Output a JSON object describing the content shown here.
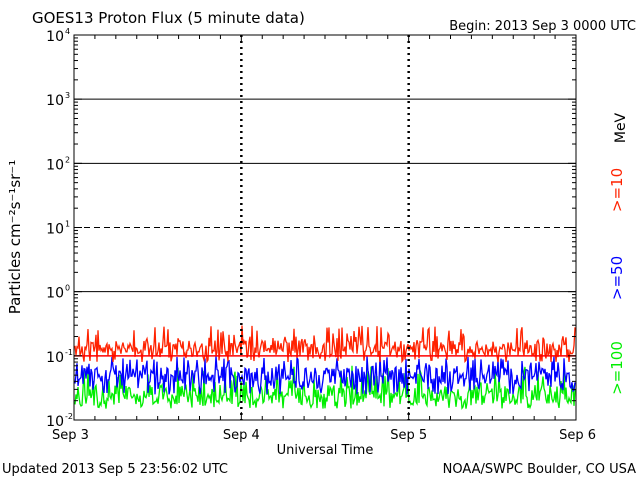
{
  "header": {
    "title": "GOES13 Proton Flux (5 minute data)",
    "begin": "Begin: 2013 Sep 3 0000 UTC"
  },
  "footer": {
    "updated": "Updated 2013 Sep  5 23:56:02 UTC",
    "source": "NOAA/SWPC Boulder, CO USA"
  },
  "chart_data": {
    "type": "line",
    "title": "GOES13 Proton Flux (5 minute data)",
    "xlabel": "Universal Time",
    "ylabel": "Particles cm⁻²s⁻¹sr⁻¹",
    "y_scale": "log",
    "ylim": [
      0.01,
      10000
    ],
    "y_ticks": [
      {
        "value": 0.01,
        "base": "10",
        "exp": "-2"
      },
      {
        "value": 0.1,
        "base": "10",
        "exp": "-1"
      },
      {
        "value": 1,
        "base": "10",
        "exp": "0"
      },
      {
        "value": 10,
        "base": "10",
        "exp": "1"
      },
      {
        "value": 100,
        "base": "10",
        "exp": "2"
      },
      {
        "value": 1000,
        "base": "10",
        "exp": "3"
      },
      {
        "value": 10000,
        "base": "10",
        "exp": "4"
      }
    ],
    "x_ticks": [
      "Sep 3",
      "Sep 4",
      "Sep 5",
      "Sep 6"
    ],
    "xlim_days": [
      0,
      3
    ],
    "threshold_lines": [
      {
        "value": 1000,
        "style": "solid"
      },
      {
        "value": 100,
        "style": "solid"
      },
      {
        "value": 10,
        "style": "dashed"
      },
      {
        "value": 1,
        "style": "solid"
      },
      {
        "value": 0.1,
        "style": "solid",
        "color": "#ff0000"
      }
    ],
    "series": [
      {
        "name": ">=10",
        "color": "#ff2200",
        "min": 0.08,
        "max": 0.3,
        "typical": 0.13
      },
      {
        "name": ">=50",
        "color": "#0000ff",
        "min": 0.025,
        "max": 0.1,
        "typical": 0.05
      },
      {
        "name": ">=100",
        "color": "#00ee00",
        "min": 0.015,
        "max": 0.07,
        "typical": 0.025
      }
    ],
    "unit_label": "MeV",
    "grid": "vertical dashed at day boundaries",
    "legend_placement": "right, vertical"
  }
}
